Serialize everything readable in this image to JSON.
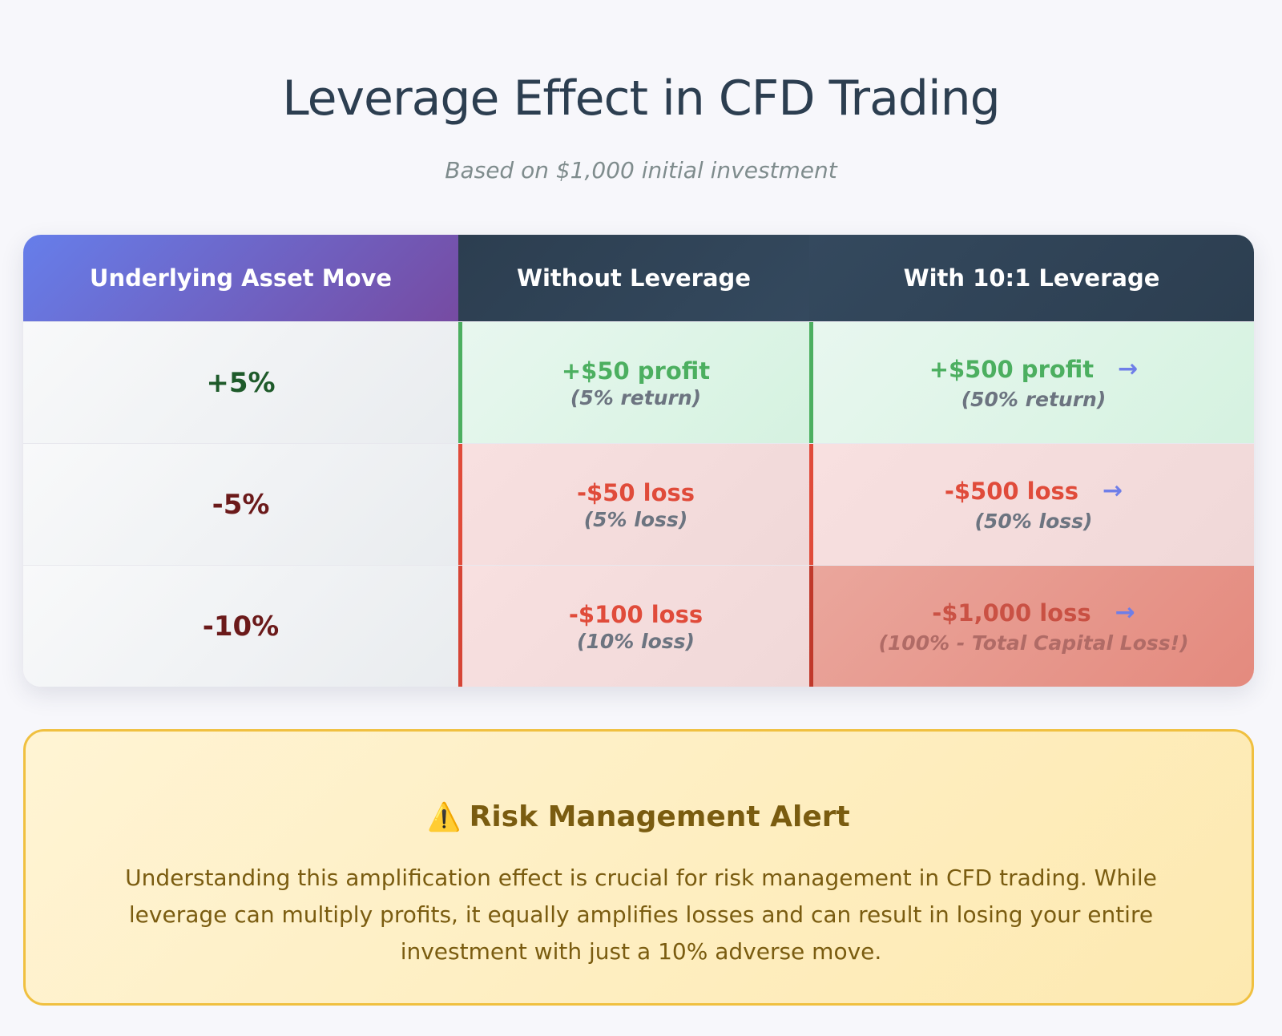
{
  "header": {
    "title": "Leverage Effect in CFD Trading",
    "subtitle": "Based on $1,000 initial investment"
  },
  "table": {
    "columns": [
      "Underlying Asset Move",
      "Without Leverage",
      "With 10:1 Leverage"
    ],
    "rows": [
      {
        "move": "+5%",
        "without_amount": "+$50 profit",
        "without_note": "(5% return)",
        "with_amount": "+$500 profit",
        "with_note": "(50% return)",
        "arrow_icon": "→"
      },
      {
        "move": "-5%",
        "without_amount": "-$50 loss",
        "without_note": "(5% loss)",
        "with_amount": "-$500 loss",
        "with_note": "(50% loss)",
        "arrow_icon": "→"
      },
      {
        "move": "-10%",
        "without_amount": "-$100 loss",
        "without_note": "(10% loss)",
        "with_amount": "-$1,000 loss",
        "with_note": "(100% - Total Capital Loss!)",
        "arrow_icon": "→"
      }
    ]
  },
  "alert": {
    "icon": "⚠️",
    "title": "Risk Management Alert",
    "text": "Understanding this amplification effect is crucial for risk management in CFD trading. While leverage can multiply profits, it equally amplifies losses and can result in losing your entire investment with just a 10% adverse move."
  },
  "colors": {
    "profit": "#4caf60",
    "loss": "#e04b3a",
    "header_accent_start": "#667eea",
    "header_accent_end": "#764ba2",
    "header_dark": "#2c3e50",
    "alert_border": "#f0c040"
  }
}
